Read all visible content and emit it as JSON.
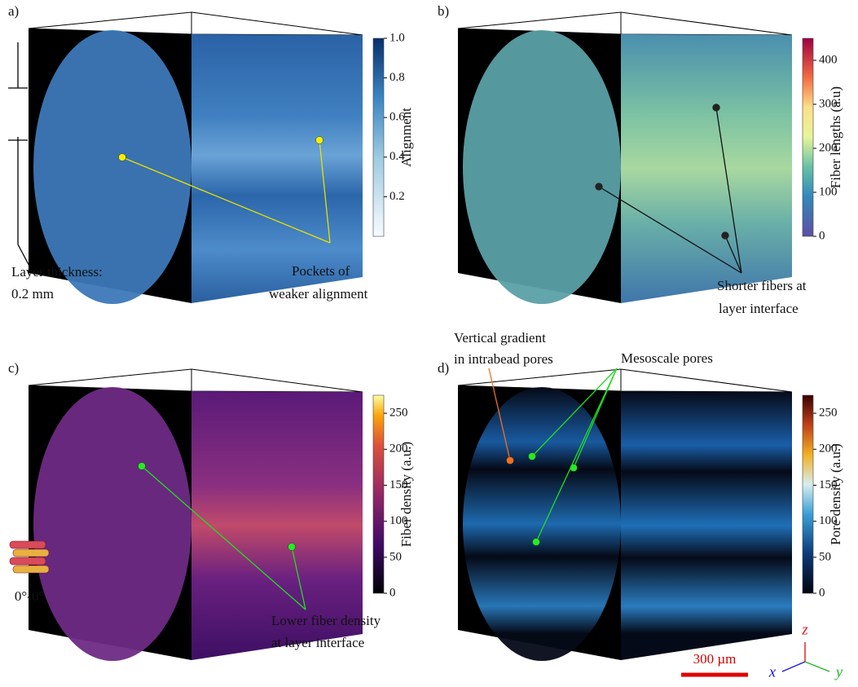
{
  "panels": [
    {
      "label": "a)",
      "colorbar": {
        "label": "Alignment",
        "lim": [
          0,
          1
        ],
        "ticks": [
          0.2,
          0.4,
          0.6,
          0.8,
          {
            "value": 1,
            "label": "1.0"
          }
        ]
      },
      "annotations": [
        "Layer thickness:",
        "0.2 mm",
        "Pockets  of",
        "weaker alignment"
      ]
    },
    {
      "label": "b)",
      "colorbar": {
        "label": "Fiber lengths (a.u)",
        "lim": [
          0,
          450
        ],
        "ticks": [
          0,
          100,
          200,
          300,
          400
        ]
      },
      "annotations": [
        "Shorter fibers at",
        "layer interface"
      ]
    },
    {
      "label": "c)",
      "colorbar": {
        "label": "Fiber density (a.u.)",
        "lim": [
          0,
          275
        ],
        "ticks": [
          0,
          50,
          100,
          150,
          200,
          250
        ]
      },
      "annotations": [
        "Lower fiber density",
        "at layer interface"
      ]
    },
    {
      "label": "d)",
      "colorbar": {
        "label": "Pore density (a.u.)",
        "lim": [
          0,
          275
        ],
        "ticks": [
          0,
          50,
          100,
          150,
          200,
          250
        ]
      },
      "annotations": [
        "Vertical gradient",
        "in intrabead pores",
        "Mesoscale pores"
      ]
    }
  ],
  "legend": {
    "stacking": "0°-0°",
    "scale_bar": "300 µm",
    "axes": [
      "x",
      "y",
      "z"
    ]
  }
}
